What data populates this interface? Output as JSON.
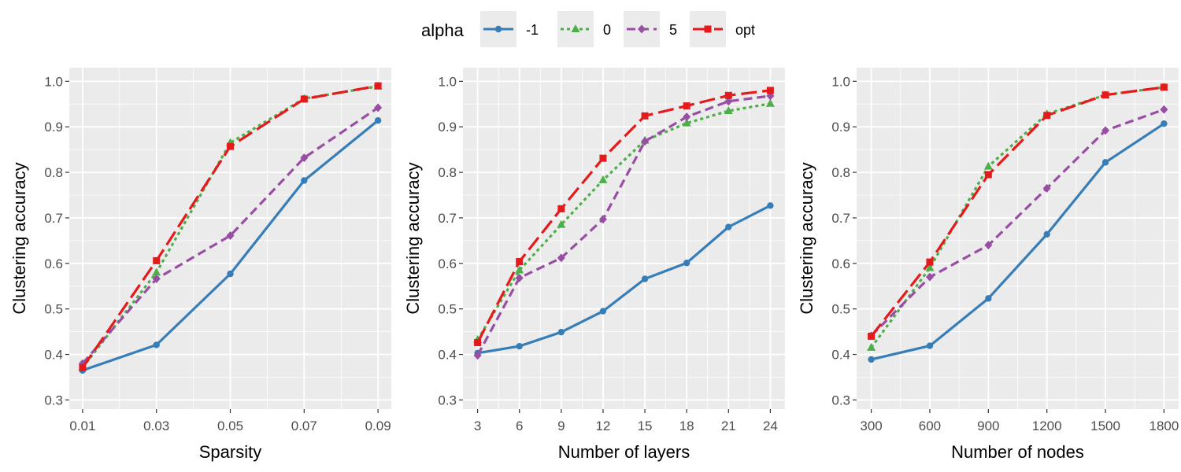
{
  "legend": {
    "title": "alpha",
    "entries": [
      "-1",
      "0",
      "5",
      "opt"
    ]
  },
  "series_style": [
    {
      "name": "-1",
      "color": "#377EB8",
      "dash": "solid",
      "marker": "circle"
    },
    {
      "name": "0",
      "color": "#4DAF4A",
      "dash": "dotted",
      "marker": "triangle"
    },
    {
      "name": "5",
      "color": "#984EA3",
      "dash": "dashed",
      "marker": "diamond"
    },
    {
      "name": "opt",
      "color": "#E41A1C",
      "dash": "longdash",
      "marker": "square"
    }
  ],
  "colors": {
    "panel_background": "#EBEBEB",
    "grid": "#FFFFFF",
    "axis_text": "#4D4D4D"
  },
  "chart_data": [
    {
      "type": "line",
      "xlabel": "Sparsity",
      "ylabel": "Clustering accuracy",
      "x": [
        0.01,
        0.03,
        0.05,
        0.07,
        0.09
      ],
      "x_tick_labels": [
        "0.01",
        "0.03",
        "0.05",
        "0.07",
        "0.09"
      ],
      "xlim": [
        0.0064,
        0.0936
      ],
      "ylim": [
        0.28,
        1.03
      ],
      "y_ticks": [
        0.3,
        0.4,
        0.5,
        0.6,
        0.7,
        0.8,
        0.9,
        1.0
      ],
      "y_tick_labels": [
        "0.3",
        "0.4",
        "0.5",
        "0.6",
        "0.7",
        "0.8",
        "0.9",
        "1.0"
      ],
      "grid": true,
      "series": [
        {
          "name": "-1",
          "values": [
            0.365,
            0.421,
            0.577,
            0.782,
            0.914
          ]
        },
        {
          "name": "0",
          "values": [
            0.371,
            0.58,
            0.865,
            0.962,
            0.989
          ]
        },
        {
          "name": "5",
          "values": [
            0.38,
            0.566,
            0.661,
            0.832,
            0.942
          ]
        },
        {
          "name": "opt",
          "values": [
            0.371,
            0.606,
            0.857,
            0.961,
            0.99
          ]
        }
      ]
    },
    {
      "type": "line",
      "xlabel": "Number of layers",
      "ylabel": "Clustering accuracy",
      "x": [
        3,
        6,
        9,
        12,
        15,
        18,
        21,
        24
      ],
      "x_tick_labels": [
        "3",
        "6",
        "9",
        "12",
        "15",
        "18",
        "21",
        "24"
      ],
      "xlim": [
        1.95,
        25.05
      ],
      "ylim": [
        0.28,
        1.03
      ],
      "y_ticks": [
        0.3,
        0.4,
        0.5,
        0.6,
        0.7,
        0.8,
        0.9,
        1.0
      ],
      "y_tick_labels": [
        "0.3",
        "0.4",
        "0.5",
        "0.6",
        "0.7",
        "0.8",
        "0.9",
        "1.0"
      ],
      "grid": true,
      "series": [
        {
          "name": "-1",
          "values": [
            0.403,
            0.418,
            0.449,
            0.495,
            0.566,
            0.601,
            0.68,
            0.727
          ]
        },
        {
          "name": "0",
          "values": [
            0.432,
            0.585,
            0.685,
            0.783,
            0.87,
            0.908,
            0.935,
            0.951
          ]
        },
        {
          "name": "5",
          "values": [
            0.398,
            0.568,
            0.612,
            0.697,
            0.868,
            0.922,
            0.956,
            0.968
          ]
        },
        {
          "name": "opt",
          "values": [
            0.426,
            0.604,
            0.72,
            0.831,
            0.924,
            0.946,
            0.969,
            0.98
          ]
        }
      ]
    },
    {
      "type": "line",
      "xlabel": "Number of nodes",
      "ylabel": "Clustering accuracy",
      "x": [
        300,
        600,
        900,
        1200,
        1500,
        1800
      ],
      "x_tick_labels": [
        "300",
        "600",
        "900",
        "1200",
        "1500",
        "1800"
      ],
      "xlim": [
        225,
        1875
      ],
      "ylim": [
        0.28,
        1.03
      ],
      "y_ticks": [
        0.3,
        0.4,
        0.5,
        0.6,
        0.7,
        0.8,
        0.9,
        1.0
      ],
      "y_tick_labels": [
        "0.3",
        "0.4",
        "0.5",
        "0.6",
        "0.7",
        "0.8",
        "0.9",
        "1.0"
      ],
      "grid": true,
      "series": [
        {
          "name": "-1",
          "values": [
            0.389,
            0.419,
            0.523,
            0.664,
            0.822,
            0.907
          ]
        },
        {
          "name": "0",
          "values": [
            0.415,
            0.59,
            0.813,
            0.928,
            0.97,
            0.987
          ]
        },
        {
          "name": "5",
          "values": [
            0.441,
            0.57,
            0.64,
            0.765,
            0.892,
            0.938
          ]
        },
        {
          "name": "opt",
          "values": [
            0.44,
            0.603,
            0.795,
            0.925,
            0.97,
            0.987
          ]
        }
      ]
    }
  ]
}
